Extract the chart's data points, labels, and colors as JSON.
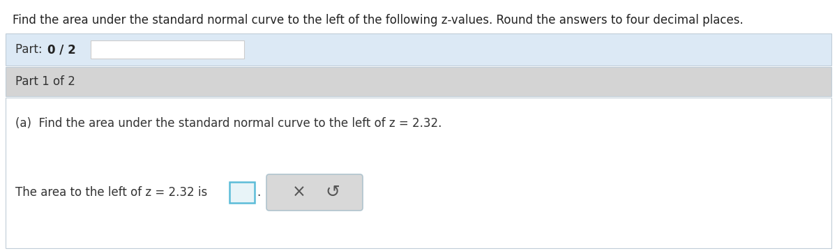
{
  "title_text": "Find the area under the standard normal curve to the left of the following z-values. Round the answers to four decimal places.",
  "part_progress_label": "Part: ",
  "part_progress_bold": "0 / 2",
  "part_label": "Part 1 of 2",
  "question_text": "(a)  Find the area under the standard normal curve to the left of z = 2.32.",
  "answer_text_before": "The area to the left of z = 2.32 is",
  "bg_color": "#ffffff",
  "part_progress_bg": "#dce9f5",
  "part_label_bg": "#d4d4d4",
  "question_bg": "#ffffff",
  "outer_border_color": "#c8c8c8",
  "button_bg": "#d8d8d8",
  "button_border": "#b0c4ce",
  "input_border": "#5bbcd8",
  "input_fill": "#e8f4f8",
  "progress_bar_fill": "#ffffff",
  "progress_bar_border": "#cccccc",
  "title_fontsize": 12,
  "body_fontsize": 12
}
